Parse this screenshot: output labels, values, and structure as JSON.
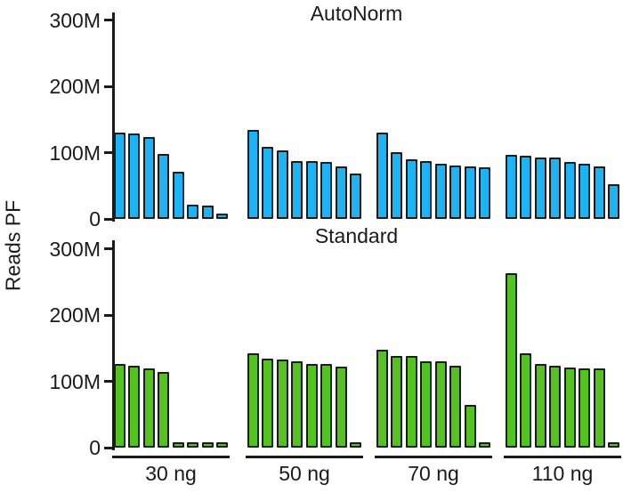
{
  "figure": {
    "y_axis_label": "Reads PF",
    "background_color": "#ffffff",
    "text_color": "#1a1a1a",
    "axis_color": "#1a1a1a"
  },
  "chart_data": [
    {
      "type": "bar",
      "title": "AutoNorm",
      "bar_color": "#1db4f5",
      "bar_outline_color": "#1c1c1c",
      "ylabel": "Reads PF",
      "ylim": [
        0,
        310
      ],
      "grid": false,
      "legend": "none",
      "yticks": [
        {
          "value": 300,
          "label": "300M"
        },
        {
          "value": 200,
          "label": "200M"
        },
        {
          "value": 100,
          "label": "100M"
        },
        {
          "value": 0,
          "label": "0"
        }
      ],
      "categories": [
        "30 ng",
        "50 ng",
        "70 ng",
        "110 ng"
      ],
      "values_unit": "millions of reads",
      "groups": [
        {
          "category": "30 ng",
          "values": [
            130,
            129,
            124,
            98,
            71,
            21,
            20,
            3
          ]
        },
        {
          "category": "50 ng",
          "values": [
            134,
            109,
            104,
            88,
            87,
            86,
            79,
            68
          ]
        },
        {
          "category": "70 ng",
          "values": [
            131,
            101,
            90,
            87,
            83,
            81,
            79,
            78
          ]
        },
        {
          "category": "110 ng",
          "values": [
            97,
            95,
            93,
            93,
            86,
            84,
            79,
            53
          ]
        }
      ]
    },
    {
      "type": "bar",
      "title": "Standard",
      "bar_color": "#54c31f",
      "bar_outline_color": "#1c1c1c",
      "ylabel": "Reads PF",
      "ylim": [
        0,
        310
      ],
      "grid": false,
      "legend": "none",
      "yticks": [
        {
          "value": 300,
          "label": "300M"
        },
        {
          "value": 200,
          "label": "200M"
        },
        {
          "value": 100,
          "label": "100M"
        },
        {
          "value": 0,
          "label": "0"
        }
      ],
      "categories": [
        "30 ng",
        "50 ng",
        "70 ng",
        "110 ng"
      ],
      "values_unit": "millions of reads",
      "groups": [
        {
          "category": "30 ng",
          "values": [
            127,
            124,
            120,
            114,
            3,
            3,
            3,
            3
          ]
        },
        {
          "category": "50 ng",
          "values": [
            142,
            134,
            133,
            130,
            127,
            126,
            122,
            3
          ]
        },
        {
          "category": "70 ng",
          "values": [
            148,
            139,
            138,
            131,
            130,
            124,
            64,
            3
          ]
        },
        {
          "category": "110 ng",
          "values": [
            264,
            142,
            126,
            123,
            121,
            120,
            119,
            4
          ]
        }
      ]
    }
  ]
}
